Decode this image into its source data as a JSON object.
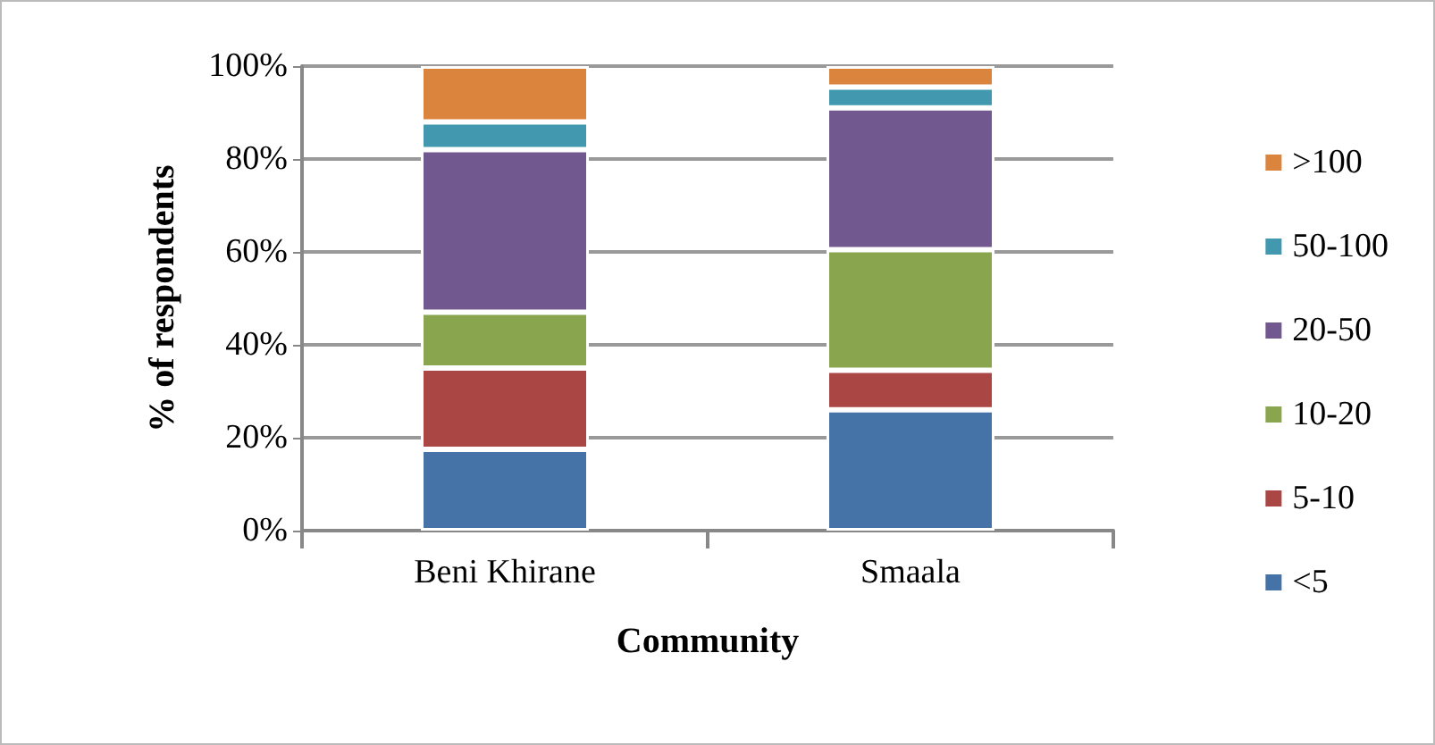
{
  "chart_data": {
    "type": "bar",
    "stacked": true,
    "xlabel": "Community",
    "ylabel": "% of respondents",
    "categories": [
      "Beni Khirane",
      "Smaala"
    ],
    "series": [
      {
        "name": "<5",
        "color": "#4572a7",
        "values": [
          17.5,
          26
        ]
      },
      {
        "name": "5-10",
        "color": "#aa4643",
        "values": [
          17.5,
          8.5
        ]
      },
      {
        "name": "10-20",
        "color": "#89a54e",
        "values": [
          12,
          26
        ]
      },
      {
        "name": "20-50",
        "color": "#71588f",
        "values": [
          35,
          30.5
        ]
      },
      {
        "name": "50-100",
        "color": "#4198af",
        "values": [
          6,
          4.5
        ]
      },
      {
        "name": ">100",
        "color": "#db843d",
        "values": [
          12,
          4.5
        ]
      }
    ],
    "ylim": [
      0,
      100
    ],
    "yticks": [
      {
        "value": 0,
        "label": "0%"
      },
      {
        "value": 20,
        "label": "20%"
      },
      {
        "value": 40,
        "label": "40%"
      },
      {
        "value": 60,
        "label": "60%"
      },
      {
        "value": 80,
        "label": "80%"
      },
      {
        "value": 100,
        "label": "100%"
      }
    ],
    "grid": "y",
    "legend": "right"
  }
}
